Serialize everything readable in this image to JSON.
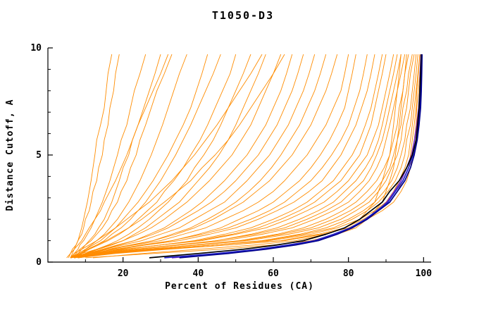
{
  "window": {
    "title": "T1050-D3"
  },
  "chart_data": {
    "type": "line",
    "title": "T1050-D3",
    "xlabel": "Percent of Residues (CA)",
    "ylabel": "Distance Cutoff, A",
    "xlim": [
      0,
      102
    ],
    "ylim": [
      0,
      10
    ],
    "grid": false,
    "legend": "none",
    "x_major_ticks": [
      20,
      40,
      60,
      80,
      100
    ],
    "x_minor_ticks": [
      10,
      30,
      50,
      70,
      90
    ],
    "y_major_ticks": [
      0,
      5,
      10
    ],
    "y_minor_ticks": [
      1,
      2,
      3,
      4,
      6,
      7,
      8,
      9
    ],
    "colors": {
      "models": "#ff8c00",
      "highlight_navy": "#00008b",
      "highlight_black": "#000000",
      "highlight_blue": "#2222cc",
      "highlight_purple": "#7a2fbe",
      "axis": "#000000"
    },
    "y_grid": [
      0.2,
      0.4,
      0.6,
      0.8,
      1.0,
      1.3,
      1.6,
      2.0,
      2.4,
      2.8,
      3.3,
      3.8,
      4.4,
      5.0,
      5.7,
      6.4,
      7.2,
      8.0,
      8.8,
      9.7
    ],
    "series_note": "Each series is percent-of-residues (x) sampled at the shared y_grid of distance cutoffs",
    "models": [
      [
        6,
        6.5,
        7,
        7.5,
        8,
        8.5,
        9,
        9.5,
        10,
        10.5,
        11,
        11.5,
        12,
        12.5,
        13,
        14,
        15,
        15.5,
        16,
        17
      ],
      [
        5.5,
        6,
        6.5,
        7.5,
        8,
        9,
        9.5,
        10,
        11,
        11.5,
        12,
        13,
        13.5,
        14.5,
        15,
        16,
        16.5,
        17.5,
        18,
        19
      ],
      [
        6,
        7,
        8,
        8.5,
        9.5,
        10.5,
        11.5,
        12.5,
        13.5,
        14.5,
        15.5,
        16.5,
        17.5,
        18.5,
        19.5,
        21,
        22,
        23,
        24.5,
        26
      ],
      [
        7,
        8,
        9,
        10,
        11,
        12.5,
        13.5,
        15,
        16,
        17,
        18,
        19,
        20,
        21.5,
        22.5,
        24,
        25.5,
        27,
        28.5,
        30
      ],
      [
        6,
        7.5,
        8.5,
        10,
        11.5,
        13,
        14.5,
        16,
        17,
        18.5,
        19.5,
        21,
        22,
        23.5,
        24.5,
        26,
        27.5,
        29,
        31,
        33
      ],
      [
        8,
        9,
        10,
        11.5,
        13,
        15,
        16.5,
        18.5,
        20,
        21.5,
        23,
        24.5,
        26,
        27.5,
        29,
        30.5,
        32,
        33.5,
        35,
        37
      ],
      [
        6,
        8,
        10,
        12,
        14,
        16,
        18,
        20,
        22,
        24,
        26,
        28,
        30,
        32,
        34,
        36,
        38,
        39.5,
        41,
        42.5
      ],
      [
        7,
        9,
        11,
        13,
        15,
        17,
        19.5,
        22,
        24,
        26,
        28,
        30,
        32,
        34,
        36,
        38,
        40,
        42,
        44,
        46
      ],
      [
        6,
        8.5,
        11,
        13.5,
        16,
        19,
        21.5,
        24,
        26.5,
        29,
        31,
        33.5,
        36,
        38,
        40.5,
        42.5,
        44.5,
        46.5,
        48.5,
        50
      ],
      [
        8,
        10,
        13,
        16,
        18.5,
        21.5,
        24,
        27,
        29.5,
        32,
        34.5,
        37,
        39,
        41.5,
        44,
        46,
        48,
        50,
        52,
        54
      ],
      [
        7,
        10,
        13.5,
        17,
        20,
        23,
        26,
        29,
        32,
        35,
        37.5,
        40,
        43,
        45.5,
        48,
        50,
        52,
        54,
        56,
        58
      ],
      [
        6,
        9,
        13,
        16.5,
        20,
        24,
        27.5,
        31,
        34,
        37,
        40,
        43,
        46,
        49,
        51.5,
        54,
        56,
        58,
        60,
        62
      ],
      [
        8,
        11,
        15,
        19,
        23,
        27,
        31,
        34.5,
        38,
        41,
        44,
        47,
        50,
        53,
        55.5,
        58,
        60,
        62,
        63.5,
        65
      ],
      [
        7,
        10.5,
        14.5,
        18.5,
        23,
        28,
        32,
        36,
        40,
        43.5,
        47,
        50,
        53,
        56,
        58.5,
        61,
        63,
        65,
        66.5,
        68
      ],
      [
        6,
        10,
        15,
        20,
        25,
        30,
        35,
        39,
        43,
        47,
        50,
        53,
        56,
        59,
        61.5,
        64,
        66,
        68,
        69.5,
        71
      ],
      [
        8,
        12,
        17,
        22.5,
        28,
        33,
        38,
        42.5,
        46.5,
        50,
        53.5,
        56.5,
        59.5,
        62,
        64.5,
        67,
        69,
        71,
        72.5,
        74
      ],
      [
        7,
        11,
        16,
        22,
        28,
        34,
        39,
        44,
        48,
        52,
        55.5,
        59,
        62,
        65,
        67.5,
        70,
        72,
        74,
        75.5,
        77
      ],
      [
        6,
        10,
        16,
        23,
        30,
        36,
        42,
        47,
        52,
        56,
        60,
        63,
        66,
        69,
        71.5,
        74,
        76,
        78,
        79,
        80
      ],
      [
        8,
        13,
        19,
        26,
        33,
        40,
        46,
        51,
        56,
        60,
        63.5,
        67,
        70,
        72.5,
        75,
        77,
        79,
        80,
        81,
        82
      ],
      [
        7,
        12,
        18,
        25,
        33,
        41,
        48,
        54,
        59,
        63,
        66.5,
        70,
        73,
        75.5,
        78,
        80,
        81.5,
        83,
        84,
        85
      ],
      [
        6,
        11,
        18,
        26,
        35,
        43,
        50,
        56,
        61,
        65.5,
        69.5,
        73,
        75.5,
        78,
        80,
        82,
        83.5,
        85,
        86,
        87
      ],
      [
        8,
        14,
        21,
        30,
        39,
        47,
        54,
        60,
        65,
        69,
        72.5,
        76,
        78.5,
        81,
        83,
        84.5,
        86,
        87,
        88,
        89
      ],
      [
        7,
        13,
        21,
        30,
        40,
        49,
        56,
        62,
        67,
        71,
        74.5,
        78,
        80.5,
        83,
        84.5,
        86,
        87,
        88,
        89,
        90
      ],
      [
        6,
        12,
        20,
        30,
        41,
        50,
        58,
        64,
        69,
        73.5,
        77,
        80,
        82.5,
        85,
        86.5,
        88,
        89,
        90,
        91,
        92
      ],
      [
        8,
        15,
        24,
        35,
        45,
        54,
        61,
        67,
        72,
        76,
        79,
        82,
        84.5,
        86.5,
        88,
        89,
        90,
        91,
        92,
        93
      ],
      [
        7,
        14,
        23,
        34,
        45,
        55,
        63,
        69,
        74,
        78,
        81,
        84,
        86,
        87.5,
        89,
        90,
        91,
        92,
        93,
        94
      ],
      [
        6,
        13,
        23,
        35,
        47,
        57,
        65,
        71,
        76,
        80,
        83,
        85.5,
        87.5,
        89,
        90,
        91,
        92,
        93,
        94,
        95
      ],
      [
        8,
        16,
        27,
        39,
        51,
        61,
        68,
        74,
        78.5,
        82,
        85,
        87.5,
        89.5,
        91,
        92,
        93,
        93.5,
        94.5,
        95,
        96
      ],
      [
        7,
        15,
        26,
        39,
        52,
        62,
        70,
        76,
        80.5,
        84,
        87,
        89,
        91,
        92,
        93,
        94,
        94.5,
        95.5,
        96,
        97
      ],
      [
        6,
        14,
        26,
        40,
        53,
        64,
        72,
        78,
        82,
        85.5,
        88,
        90,
        91.5,
        93,
        94,
        94.5,
        95.5,
        96,
        96.5,
        97.5
      ],
      [
        8,
        17,
        30,
        44,
        57,
        67,
        74,
        80,
        84,
        87,
        89.5,
        91.5,
        93,
        94,
        95,
        95.5,
        96.5,
        97,
        97.5,
        98
      ],
      [
        7,
        16,
        29,
        44,
        58,
        68,
        76,
        81,
        85,
        88,
        90.5,
        92.5,
        94,
        95,
        95.5,
        96.5,
        97,
        97.5,
        98,
        98.5
      ],
      [
        6,
        15,
        28,
        44,
        59,
        70,
        77,
        83,
        87,
        90,
        92,
        93.5,
        95,
        96,
        96.5,
        97,
        97.5,
        98,
        98.5,
        99
      ],
      [
        8,
        18,
        32,
        48,
        62,
        72,
        79,
        84,
        88,
        91,
        93,
        94.5,
        96,
        96.5,
        97,
        97.5,
        98,
        98.2,
        98.6,
        99
      ],
      [
        7,
        17,
        31,
        48,
        63,
        73,
        80,
        85,
        89,
        92,
        94,
        95.5,
        96.5,
        97,
        97.5,
        98,
        98.2,
        98.6,
        99,
        99.5
      ],
      [
        12,
        25,
        40,
        55,
        66,
        74,
        79,
        83,
        85,
        87,
        88,
        89,
        90,
        91,
        91.5,
        92,
        92.5,
        93,
        93.5,
        94
      ],
      [
        10,
        28,
        46,
        60,
        70,
        77,
        82,
        85,
        87,
        89,
        90,
        91,
        92,
        92.5,
        93,
        93.5,
        94,
        94.5,
        95,
        95.5
      ],
      [
        5,
        6,
        7,
        8,
        9,
        10,
        11,
        12.5,
        14,
        15,
        16.5,
        18,
        19.5,
        21,
        22.5,
        24,
        26,
        28,
        30,
        32
      ],
      [
        6,
        7,
        9,
        11,
        13,
        15.5,
        18,
        21,
        24,
        27,
        30,
        33,
        36,
        39,
        42,
        45,
        48,
        51,
        54,
        57
      ],
      [
        7,
        8.5,
        10.5,
        13,
        15.5,
        18.5,
        21.5,
        25,
        28,
        31,
        34.5,
        38,
        41,
        44.5,
        48,
        51,
        54,
        57,
        60,
        63
      ]
    ],
    "highlighted": [
      {
        "name": "highlight-purple",
        "color": "#7a2fbe",
        "x": [
          33,
          46,
          56.5,
          64.5,
          71,
          76.5,
          81,
          84.8,
          87.8,
          90.2,
          92.2,
          94,
          95.5,
          96.8,
          97.6,
          98.2,
          98.7,
          99,
          99.1,
          99.3
        ]
      },
      {
        "name": "highlight-blue",
        "color": "#2222cc",
        "x": [
          31,
          45,
          56,
          64,
          71,
          76,
          80.5,
          84.5,
          87.5,
          90.5,
          92.5,
          94.5,
          96,
          97.2,
          98,
          98.6,
          99,
          99.2,
          99.4,
          99.5
        ]
      },
      {
        "name": "highlight-black",
        "color": "#000000",
        "x": [
          27,
          40,
          52,
          61,
          68,
          74,
          79,
          83,
          86,
          89,
          91,
          93.5,
          95.5,
          97,
          98,
          98.4,
          98.8,
          99.0,
          99.2,
          99.4
        ]
      },
      {
        "name": "highlight-navy",
        "color": "#00008b",
        "x": [
          35,
          48,
          58,
          66,
          72,
          77,
          81,
          85,
          88,
          91,
          93,
          95,
          96.5,
          97.5,
          98.3,
          98.8,
          99.2,
          99.4,
          99.5,
          99.6
        ]
      }
    ]
  }
}
